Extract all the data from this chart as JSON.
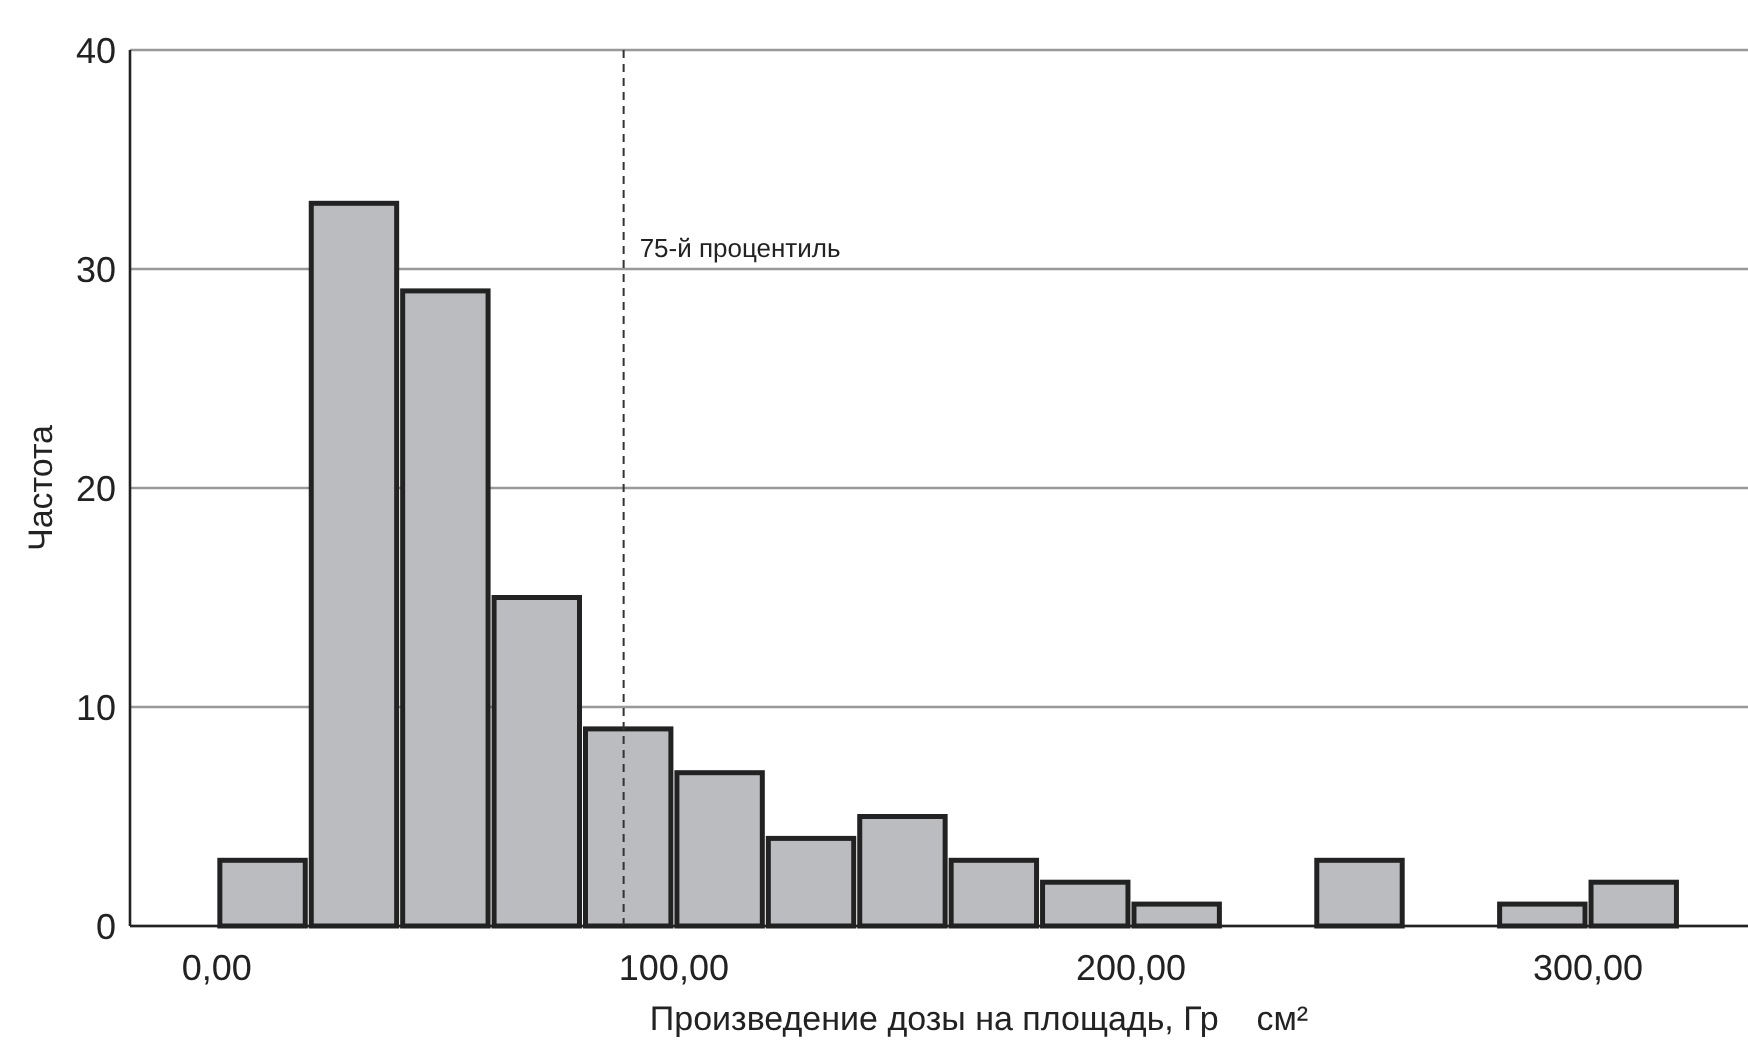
{
  "chart_data": {
    "type": "histogram",
    "xlabel": "Произведение дозы на площадь, Гр    см²",
    "ylabel": "Частота",
    "bins": [
      0,
      20,
      40,
      60,
      80,
      100,
      120,
      140,
      160,
      180,
      200,
      220,
      240,
      260,
      280,
      300,
      320
    ],
    "values": [
      3,
      33,
      29,
      15,
      9,
      7,
      4,
      5,
      3,
      2,
      1,
      0,
      3,
      0,
      1,
      2
    ],
    "color": "#bbbcc0",
    "xlim": [
      -19,
      335
    ],
    "xticks": [
      {
        "value": 0,
        "label": "0,00"
      },
      {
        "value": 100,
        "label": "100,00"
      },
      {
        "value": 200,
        "label": "200,00"
      },
      {
        "value": 300,
        "label": "300,00"
      }
    ],
    "ylim": [
      0,
      40
    ],
    "yticks": [
      0,
      10,
      20,
      30,
      40
    ],
    "grid": "y",
    "ref_lines": [
      {
        "axis": "x",
        "value": 89,
        "label": "75-й процентиль",
        "color": "#333333",
        "line_style": "dashed"
      }
    ]
  }
}
